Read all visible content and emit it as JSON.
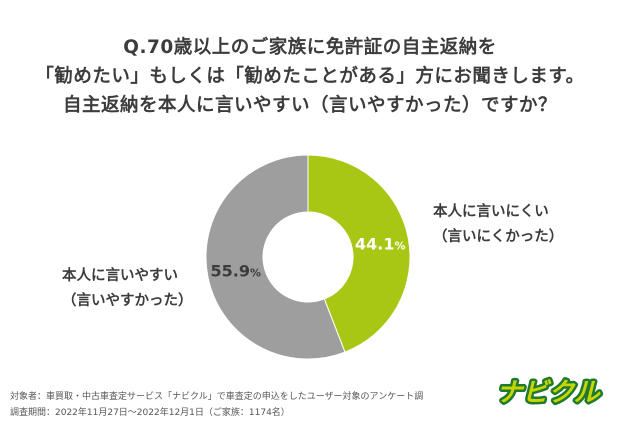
{
  "title": {
    "line1": "Q.70歳以上のご家族に免許証の自主返納を",
    "line2": "「勧めたい」もしくは「勧めたことがある」方にお聞きします。",
    "line3": "自主返納を本人に言いやすい（言いやすかった）ですか？"
  },
  "chart_data": {
    "type": "pie",
    "donut": true,
    "slices": [
      {
        "label": "本人に言いにくい",
        "sublabel": "（言いにくかった）",
        "value": 44.1,
        "value_text": "44.1",
        "color": "#a8c614"
      },
      {
        "label": "本人に言いやすい",
        "sublabel": "（言いやすかった）",
        "value": 55.9,
        "value_text": "55.9",
        "color": "#9e9e9e"
      }
    ],
    "unit": "%"
  },
  "labels": {
    "right_line1": "本人に言いにくい",
    "right_line2": "（言いにくかった）",
    "left_line1": "本人に言いやすい",
    "left_line2": "（言いやすかった）"
  },
  "footer": {
    "line1": "対象者：車買取・中古車査定サービス「ナビクル」で車査定の申込をしたユーザー対象のアンケート調",
    "line2": "調査期間：2022年11月27日〜2022年12月1日（ご家族：1174名）"
  },
  "logo": {
    "text": "ナビクル",
    "color": "#c8d400",
    "outline": "#1e7a2e"
  }
}
